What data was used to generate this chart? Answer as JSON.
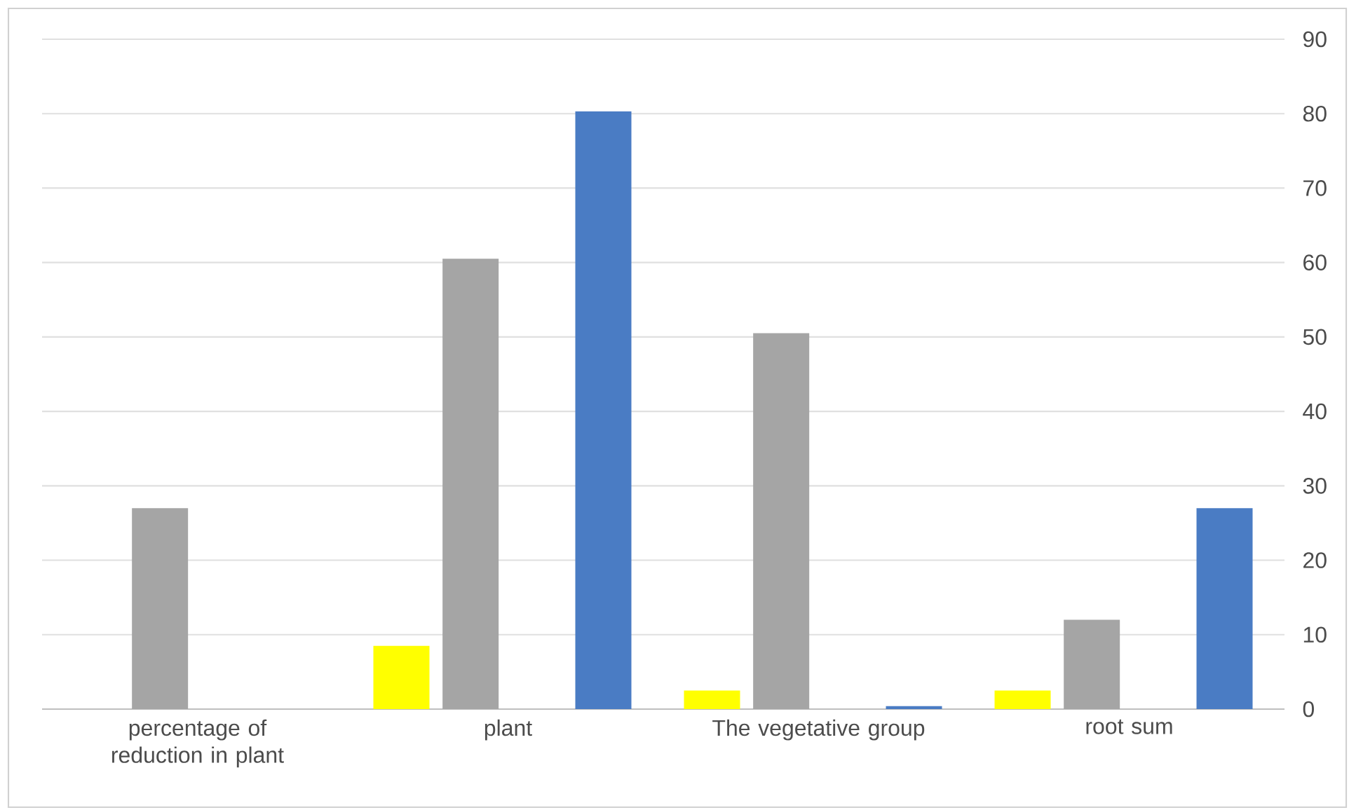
{
  "chart_data": {
    "type": "bar",
    "categories": [
      "percentage of reduction in plant",
      "plant",
      "The vegetative group",
      "root sum"
    ],
    "series": [
      {
        "color": "#ffff00",
        "values": [
          null,
          8.5,
          2.5,
          2.5
        ]
      },
      {
        "color": "#a5a5a5",
        "values": [
          27,
          60.5,
          50.5,
          12
        ]
      },
      {
        "color": "#4a7cc4",
        "values": [
          0,
          80.3,
          0.4,
          27
        ]
      }
    ],
    "ylim": [
      0,
      90
    ],
    "yticks": [
      0,
      10,
      20,
      30,
      40,
      50,
      60,
      70,
      80,
      90
    ],
    "grid": "y"
  }
}
